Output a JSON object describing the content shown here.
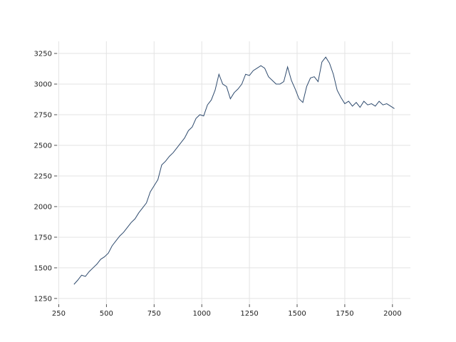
{
  "chart_data": {
    "type": "line",
    "x": [
      330,
      350,
      370,
      390,
      410,
      430,
      450,
      470,
      490,
      510,
      530,
      550,
      570,
      590,
      610,
      630,
      650,
      670,
      690,
      710,
      730,
      750,
      770,
      790,
      810,
      830,
      850,
      870,
      890,
      910,
      930,
      950,
      970,
      990,
      1010,
      1030,
      1050,
      1070,
      1090,
      1110,
      1130,
      1150,
      1170,
      1190,
      1210,
      1230,
      1250,
      1270,
      1290,
      1310,
      1330,
      1350,
      1370,
      1390,
      1410,
      1430,
      1450,
      1470,
      1490,
      1510,
      1530,
      1550,
      1570,
      1590,
      1610,
      1630,
      1650,
      1670,
      1690,
      1710,
      1730,
      1750,
      1770,
      1790,
      1810,
      1830,
      1850,
      1870,
      1890,
      1910,
      1930,
      1950,
      1970,
      1990,
      2010
    ],
    "series": [
      {
        "color": "#2f4b6e",
        "values": [
          1365,
          1400,
          1440,
          1430,
          1470,
          1500,
          1530,
          1570,
          1590,
          1620,
          1680,
          1720,
          1760,
          1790,
          1830,
          1870,
          1900,
          1950,
          1990,
          2030,
          2120,
          2170,
          2220,
          2340,
          2370,
          2410,
          2440,
          2480,
          2520,
          2560,
          2620,
          2650,
          2720,
          2750,
          2740,
          2830,
          2870,
          2950,
          3080,
          3000,
          2980,
          2880,
          2930,
          2960,
          3000,
          3080,
          3070,
          3110,
          3130,
          3150,
          3130,
          3060,
          3030,
          3000,
          3000,
          3020,
          3140,
          3030,
          2960,
          2880,
          2850,
          2980,
          3050,
          3060,
          3020,
          3180,
          3220,
          3170,
          3080,
          2950,
          2890,
          2840,
          2860,
          2820,
          2850,
          2810,
          2860,
          2830,
          2840,
          2820,
          2860,
          2830,
          2840,
          2820,
          2800
        ]
      }
    ],
    "xlim": [
      241,
      2094
    ],
    "ylim": [
      1203,
      3349
    ],
    "xticks": [
      250,
      500,
      750,
      1000,
      1250,
      1500,
      1750,
      2000
    ],
    "yticks": [
      1250,
      1500,
      1750,
      2000,
      2250,
      2500,
      2750,
      3000,
      3250
    ],
    "grid": true
  }
}
